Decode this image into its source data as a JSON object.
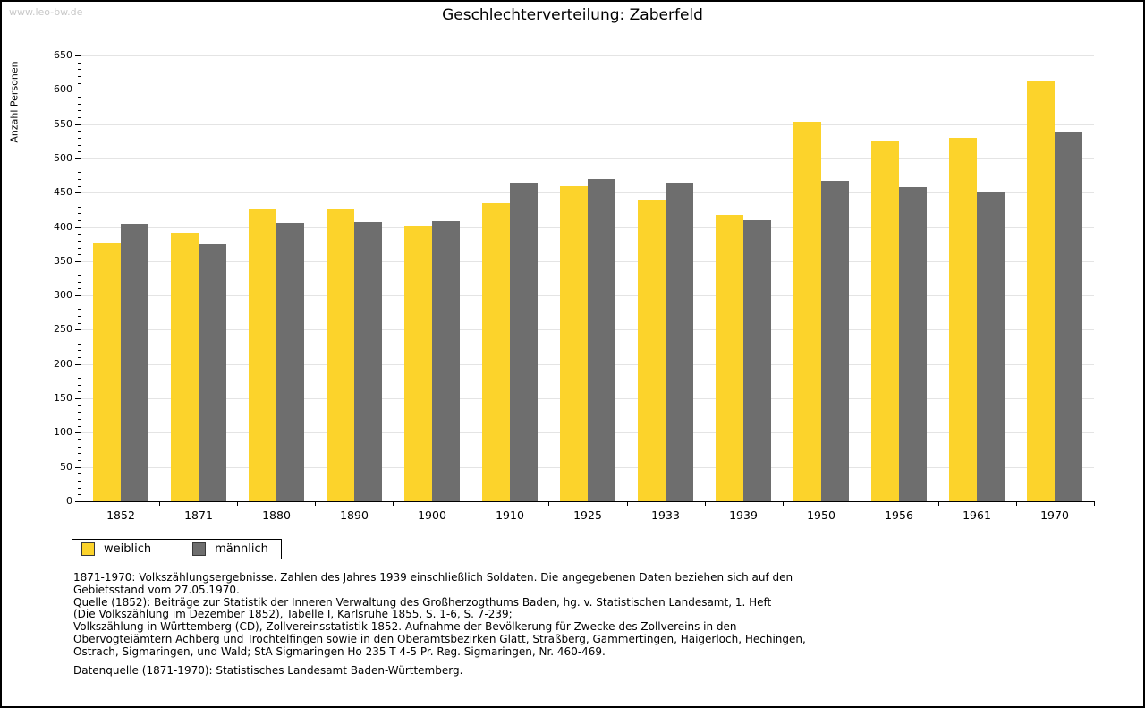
{
  "watermark": "www.leo-bw.de",
  "chart_data": {
    "type": "bar",
    "title": "Geschlechterverteilung: Zaberfeld",
    "xlabel": "",
    "ylabel": "Anzahl Personen",
    "categories": [
      "1852",
      "1871",
      "1880",
      "1890",
      "1900",
      "1910",
      "1925",
      "1933",
      "1939",
      "1950",
      "1956",
      "1961",
      "1970"
    ],
    "series": [
      {
        "name": "weiblich",
        "color": "#fcd32b",
        "values": [
          377,
          392,
          425,
          425,
          402,
          435,
          460,
          440,
          418,
          554,
          526,
          530,
          612
        ]
      },
      {
        "name": "männlich",
        "color": "#6e6e6e",
        "values": [
          405,
          374,
          406,
          407,
          408,
          464,
          470,
          463,
          410,
          467,
          458,
          451,
          538
        ]
      }
    ],
    "ylim": [
      0,
      650
    ],
    "ytick_major": 50,
    "ytick_minor": 10,
    "grid": true,
    "legend_position": "bottom-left"
  },
  "colors": {
    "grid": "#e4e4e4",
    "axis": "#000000",
    "watermark": "#c9c9c9"
  },
  "footer": {
    "lines": [
      "1871-1970: Volkszählungsergebnisse. Zahlen des Jahres 1939 einschließlich Soldaten. Die angegebenen Daten beziehen sich auf den",
      "Gebietsstand vom 27.05.1970.",
      "Quelle (1852): Beiträge zur Statistik der Inneren Verwaltung des Großherzogthums Baden, hg. v. Statistischen Landesamt, 1. Heft",
      "(Die Volkszählung im Dezember 1852), Tabelle I, Karlsruhe 1855, S. 1-6, S. 7-239;",
      "Volkszählung in Württemberg (CD), Zollvereinsstatistik 1852. Aufnahme der Bevölkerung für Zwecke des Zollvereins in den",
      "Obervogteiämtern Achberg und Trochtelfingen sowie in den Oberamtsbezirken Glatt, Straßberg, Gammertingen, Haigerloch, Hechingen,",
      "Ostrach, Sigmaringen, und Wald; StA Sigmaringen Ho 235 T 4-5 Pr. Reg. Sigmaringen, Nr. 460-469.",
      "",
      "Datenquelle (1871-1970): Statistisches Landesamt Baden-Württemberg."
    ]
  }
}
